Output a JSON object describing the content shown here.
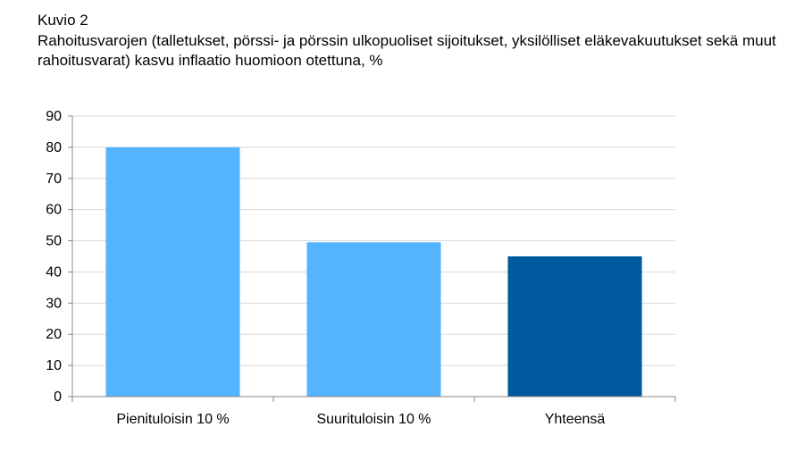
{
  "figure": {
    "label": "Kuvio 2",
    "title": "Rahoitusvarojen (talletukset, pörssi- ja pörssin ulkopuoliset sijoitukset, yksilölliset eläkevakuutukset sekä muut rahoitusvarat) kasvu inflaatio huomioon otettuna, %"
  },
  "chart_data": {
    "type": "bar",
    "title": "",
    "xlabel": "",
    "ylabel": "",
    "categories": [
      "Pienituloisin 10 %",
      "Suurituloisin 10 %",
      "Yhteensä"
    ],
    "values": [
      80,
      49.5,
      45
    ],
    "bar_colors": [
      "#55b4ff",
      "#55b4ff",
      "#005aa0"
    ],
    "ylim": [
      0,
      90
    ],
    "yticks": [
      0,
      10,
      20,
      30,
      40,
      50,
      60,
      70,
      80,
      90
    ],
    "grid": true,
    "legend": "none"
  }
}
